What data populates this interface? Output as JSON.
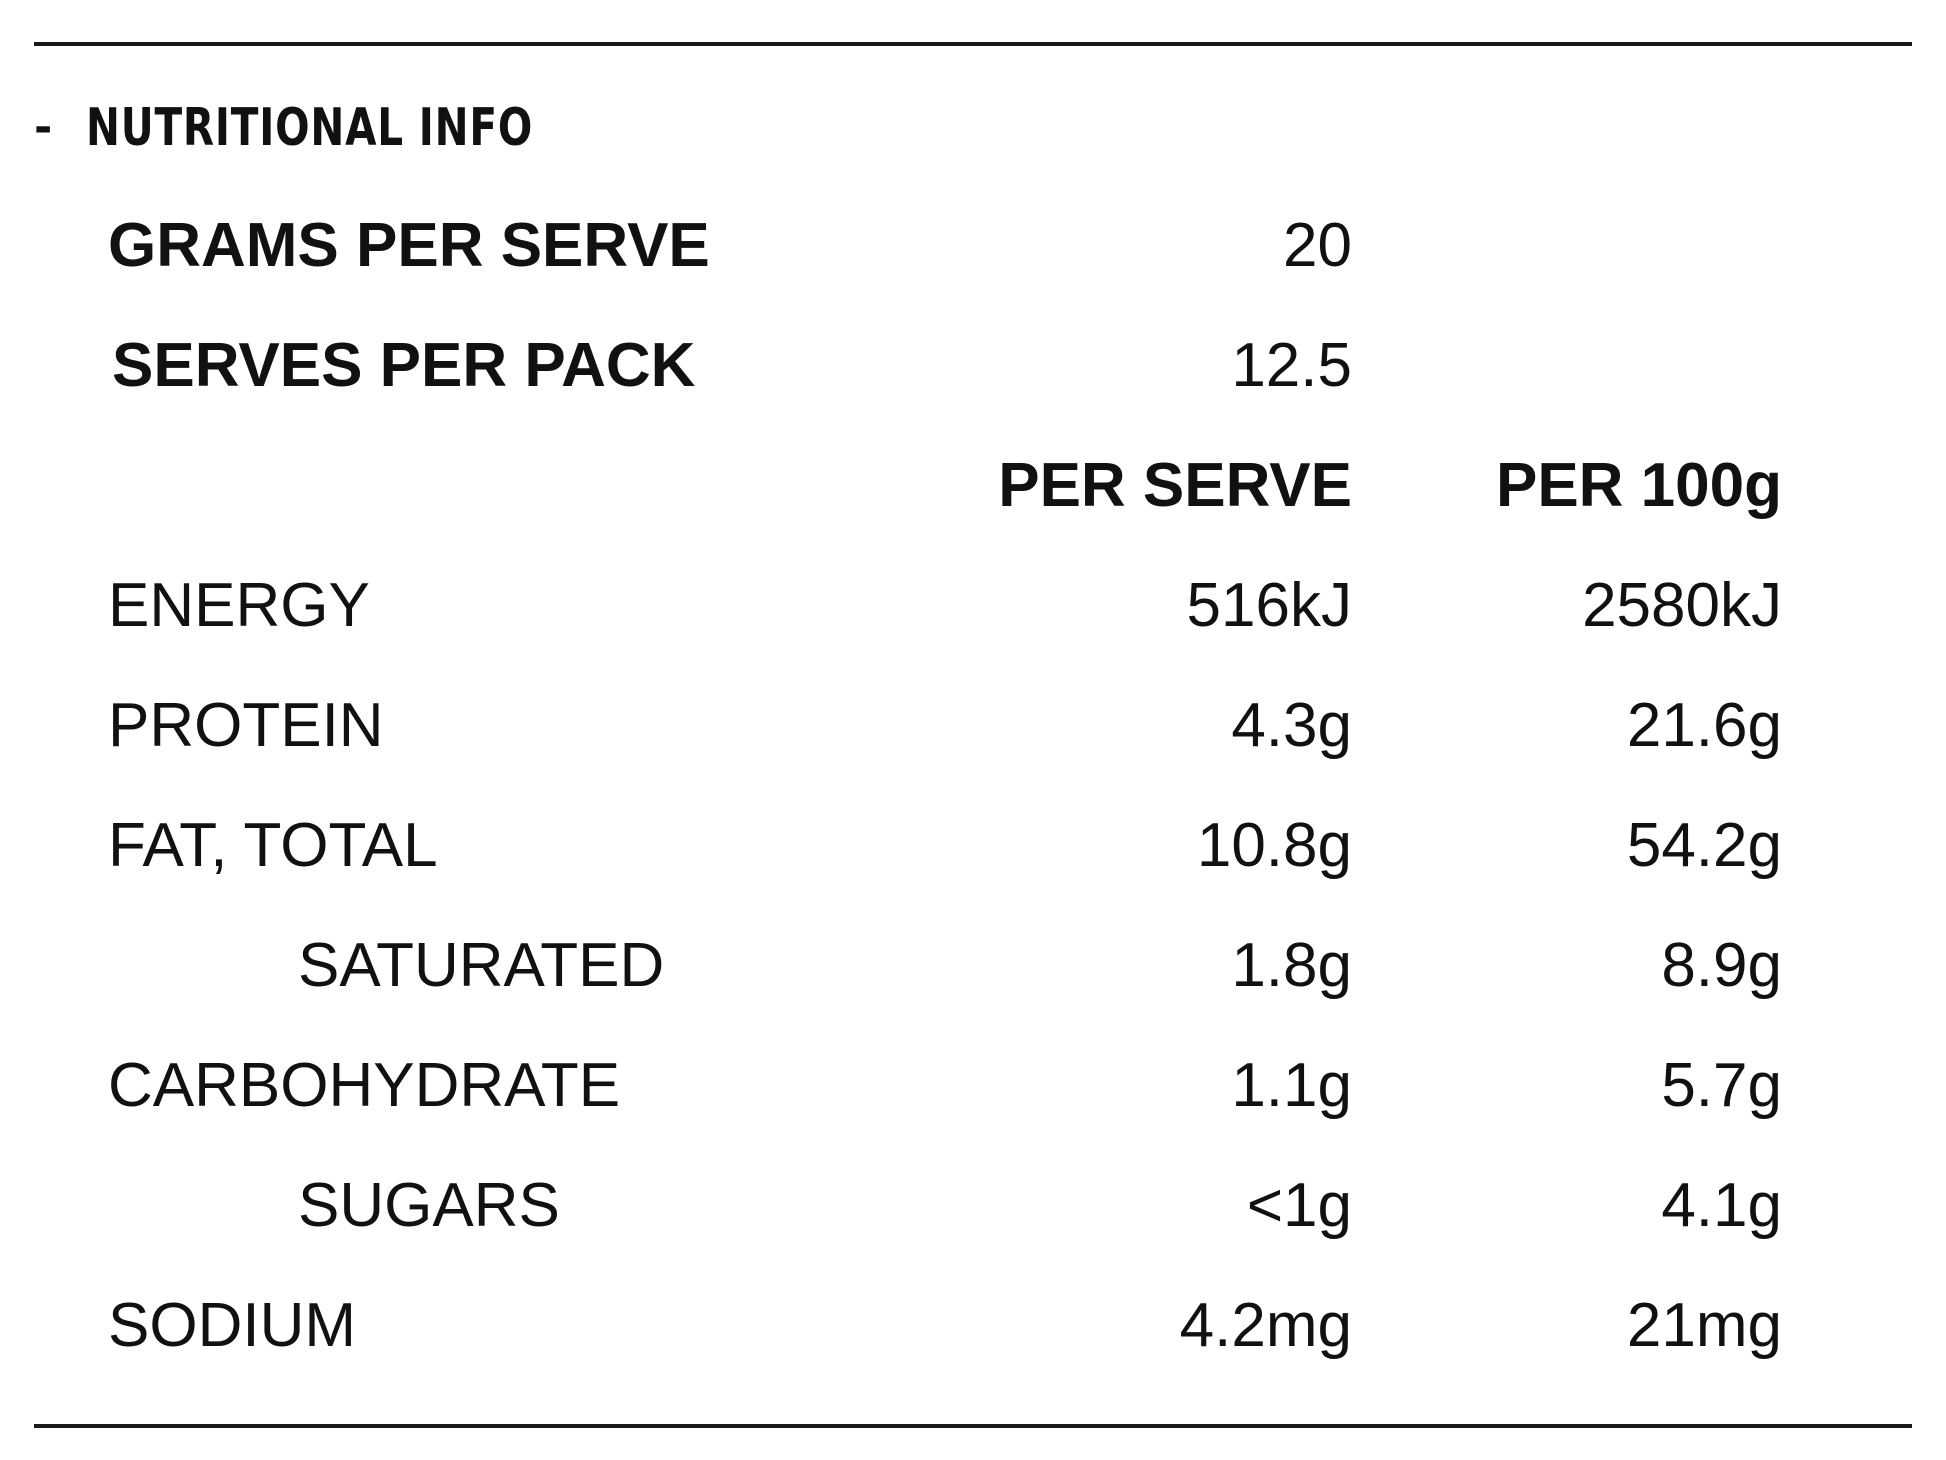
{
  "nutrition": {
    "title": "NUTRITIONAL INFO",
    "toggle_symbol": "-",
    "grams_per_serve": {
      "label": "GRAMS PER SERVE",
      "value": "20"
    },
    "serves_per_pack": {
      "label": "SERVES PER PACK",
      "value": "12.5"
    },
    "columns": {
      "per_serve": "PER SERVE",
      "per_100g": "PER 100g"
    },
    "rows": [
      {
        "label": "ENERGY",
        "per_serve": "516kJ",
        "per_100g": "2580kJ"
      },
      {
        "label": "PROTEIN",
        "per_serve": "4.3g",
        "per_100g": "21.6g"
      },
      {
        "label": "FAT, TOTAL",
        "per_serve": "10.8g",
        "per_100g": "54.2g"
      },
      {
        "label": "SATURATED",
        "per_serve": "1.8g",
        "per_100g": "8.9g"
      },
      {
        "label": "CARBOHYDRATE",
        "per_serve": "1.1g",
        "per_100g": "5.7g"
      },
      {
        "label": "SUGARS",
        "per_serve": "<1g",
        "per_100g": "4.1g"
      },
      {
        "label": "SODIUM",
        "per_serve": "4.2mg",
        "per_100g": "21mg"
      }
    ]
  }
}
